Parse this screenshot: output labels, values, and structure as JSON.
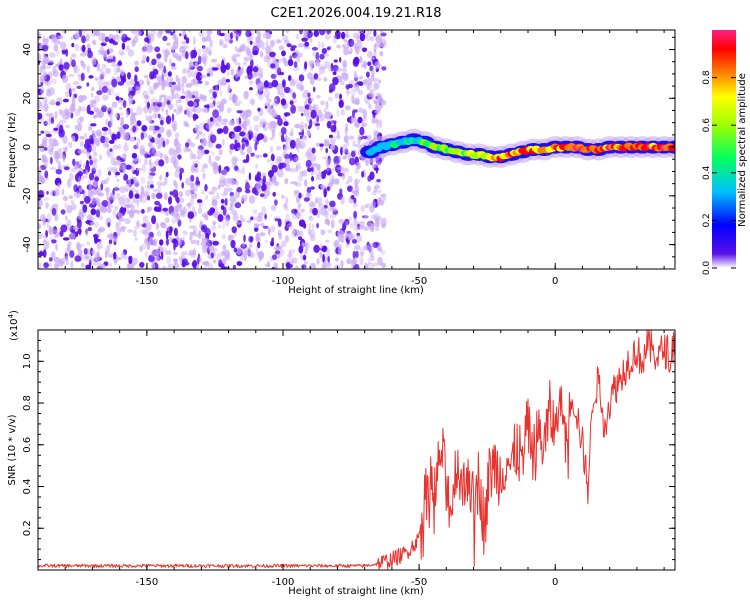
{
  "title": "C2E1.2026.004.19.21.R18",
  "colors": {
    "snr_line": "#e8322e",
    "scatter_dark": "#5a10e8",
    "scatter_light": "#c8a8f4",
    "axis": "#000000",
    "background": "#ffffff"
  },
  "chart_data": [
    {
      "type": "heatmap",
      "name": "spectrogram",
      "xlabel": "Height of straight line (km)",
      "ylabel": "Frequency (Hz)",
      "xlim": [
        -190,
        44
      ],
      "ylim": [
        -50,
        48
      ],
      "xticks": [
        -150,
        -100,
        -50,
        0
      ],
      "yticks": [
        -40,
        -20,
        0,
        20,
        40
      ],
      "noise_region_x": [
        -190,
        -65
      ],
      "signal_region_x": [
        -65,
        44
      ],
      "signal_track": {
        "x": [
          -68,
          -64,
          -60,
          -56,
          -52,
          -48,
          -44,
          -40,
          -36,
          -32,
          -28,
          -24,
          -20,
          -16,
          -12,
          -8,
          -4,
          0,
          4,
          8,
          12,
          16,
          20,
          24,
          28,
          32,
          36,
          40,
          44
        ],
        "freq": [
          -2,
          0,
          1,
          2,
          3,
          2,
          0,
          -1,
          -2,
          -3,
          -3,
          -4,
          -4,
          -3,
          -2,
          -1,
          -1,
          0,
          0,
          0,
          -1,
          -1,
          0,
          0,
          0,
          0,
          0,
          0,
          0
        ],
        "amplitude": [
          0.15,
          0.3,
          0.4,
          0.45,
          0.45,
          0.5,
          0.55,
          0.6,
          0.65,
          0.7,
          0.75,
          0.8,
          0.85,
          0.85,
          0.9,
          0.9,
          0.9,
          0.92,
          0.95,
          0.95,
          0.95,
          0.95,
          0.95,
          0.95,
          0.95,
          0.95,
          0.95,
          0.95,
          0.95
        ]
      },
      "colorbar": {
        "label": "Normalized spectral amplitude",
        "range": [
          0,
          1
        ],
        "ticks": [
          "0.0",
          "0.2",
          "0.4",
          "0.6",
          "0.8"
        ],
        "tick_values": [
          0.0,
          0.2,
          0.4,
          0.6,
          0.8
        ],
        "stops": [
          "#ffffff",
          "#5a10e8",
          "#0000ff",
          "#00c0ff",
          "#00ff60",
          "#a0ff00",
          "#ffff00",
          "#ff8000",
          "#ff0000",
          "#ff2080"
        ]
      }
    },
    {
      "type": "line",
      "name": "snr",
      "xlabel": "Height of straight line (km)",
      "ylabel": "SNR (10 * v/v)",
      "scale_label": "(x10",
      "scale_exp": "4",
      "scale_close": ")",
      "xlim": [
        -190,
        44
      ],
      "ylim": [
        0,
        1.15
      ],
      "xticks": [
        -150,
        -100,
        -50,
        0
      ],
      "yticks": [
        0.2,
        0.4,
        0.6,
        0.8,
        1.0
      ],
      "ytick_labels": [
        "0.2",
        "0.4",
        "0.6",
        "0.8",
        "1.0"
      ],
      "x": [
        -190,
        -160,
        -130,
        -100,
        -80,
        -70,
        -65,
        -60,
        -55,
        -50,
        -48,
        -46,
        -44,
        -42,
        -40,
        -38,
        -36,
        -34,
        -32,
        -30,
        -28,
        -26,
        -24,
        -22,
        -20,
        -18,
        -16,
        -14,
        -12,
        -10,
        -8,
        -6,
        -4,
        -2,
        0,
        2,
        4,
        6,
        8,
        10,
        12,
        14,
        16,
        18,
        20,
        22,
        24,
        26,
        28,
        30,
        32,
        34,
        36,
        38,
        40,
        42,
        44
      ],
      "y": [
        0.02,
        0.02,
        0.02,
        0.02,
        0.02,
        0.02,
        0.03,
        0.05,
        0.08,
        0.15,
        0.3,
        0.45,
        0.35,
        0.6,
        0.4,
        0.3,
        0.55,
        0.35,
        0.5,
        0.3,
        0.45,
        0.2,
        0.48,
        0.5,
        0.45,
        0.55,
        0.48,
        0.6,
        0.5,
        0.7,
        0.55,
        0.65,
        0.6,
        0.75,
        0.68,
        0.82,
        0.65,
        0.85,
        0.75,
        0.6,
        0.4,
        0.85,
        0.9,
        0.7,
        0.8,
        0.88,
        0.92,
        0.98,
        1.02,
        1.05,
        1.0,
        1.08,
        1.05,
        1.02,
        1.06,
        1.03,
        1.1
      ]
    }
  ]
}
